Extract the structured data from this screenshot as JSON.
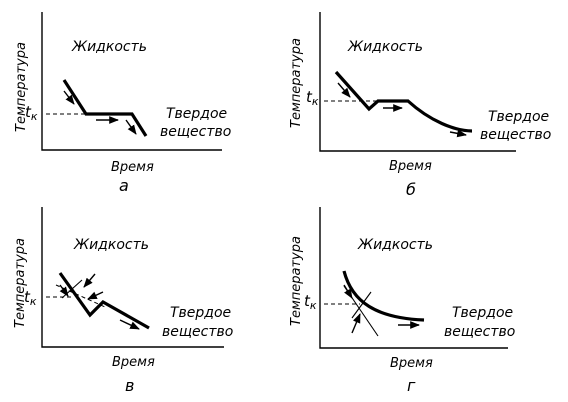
{
  "panels": [
    {
      "id": "a",
      "panel_label": "а",
      "y_axis_label": "Температура",
      "x_axis_label": "Время",
      "liquid_label": "Жидкость",
      "solid_label_line1": "Твердое",
      "solid_label_line2": "вещество",
      "tk_main": "t",
      "tk_sub": "к"
    },
    {
      "id": "b",
      "panel_label": "б",
      "y_axis_label": "Температура",
      "x_axis_label": "Время",
      "liquid_label": "Жидкость",
      "solid_label_line1": "Твердое",
      "solid_label_line2": "вещество",
      "tk_main": "t",
      "tk_sub": "к"
    },
    {
      "id": "v",
      "panel_label": "в",
      "y_axis_label": "Температура",
      "x_axis_label": "Время",
      "liquid_label": "Жидкость",
      "solid_label_line1": "Твердое",
      "solid_label_line2": "вещество",
      "tk_main": "t",
      "tk_sub": "к"
    },
    {
      "id": "g",
      "panel_label": "г",
      "y_axis_label": "Температура",
      "x_axis_label": "Время",
      "liquid_label": "Жидкость",
      "solid_label_line1": "Твердое",
      "solid_label_line2": "вещество",
      "tk_main": "t",
      "tk_sub": "к"
    }
  ]
}
